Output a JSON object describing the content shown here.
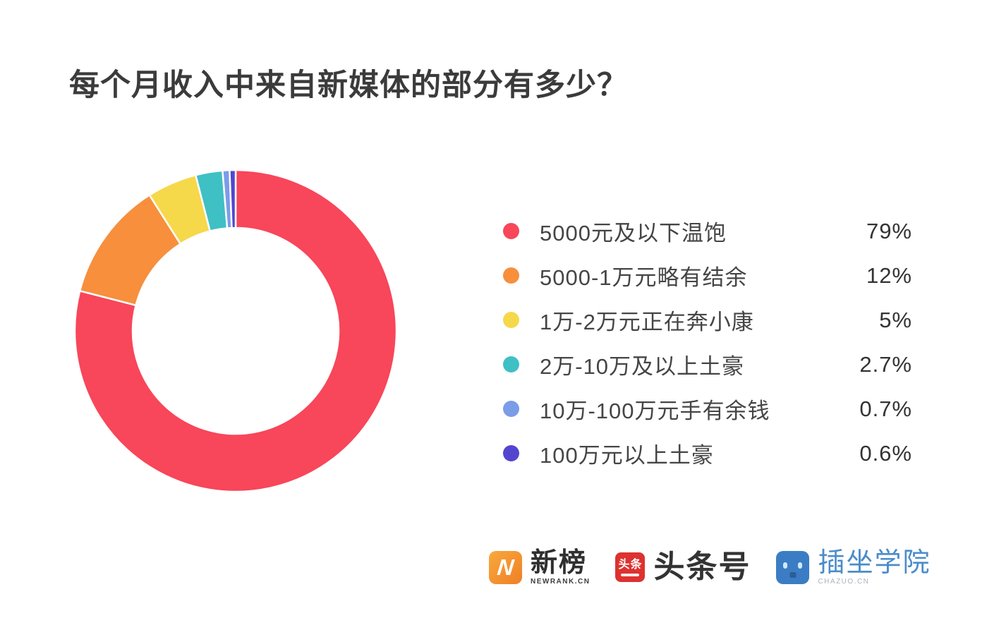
{
  "title": "每个月收入中来自新媒体的部分有多少？",
  "chart_data": {
    "type": "pie",
    "subtype": "donut",
    "title": "每个月收入中来自新媒体的部分有多少？",
    "start_angle": "top",
    "direction": "clockwise",
    "legend_position": "right",
    "labels": [
      "5000元及以下温饱",
      "5000-1万元略有结余",
      "1万-2万元正在奔小康",
      "2万-10万及以上土豪",
      "10万-100万元手有余钱",
      "100万元以上土豪"
    ],
    "values": [
      79,
      12,
      5,
      2.7,
      0.7,
      0.6
    ],
    "display_percents": [
      "79%",
      "12%",
      "5%",
      "2.7%",
      "0.7%",
      "0.6%"
    ],
    "colors": [
      "#f8465a",
      "#f78f3d",
      "#f6d84b",
      "#3ec0c5",
      "#7b9ce8",
      "#5345d0"
    ]
  },
  "legend": {
    "items": [
      {
        "label": "5000元及以下温饱",
        "percent": "79%",
        "color": "#f8465a"
      },
      {
        "label": "5000-1万元略有结余",
        "percent": "12%",
        "color": "#f78f3d"
      },
      {
        "label": "1万-2万元正在奔小康",
        "percent": "5%",
        "color": "#f6d84b"
      },
      {
        "label": "2万-10万及以上土豪",
        "percent": "2.7%",
        "color": "#3ec0c5"
      },
      {
        "label": "10万-100万元手有余钱",
        "percent": "0.7%",
        "color": "#7b9ce8"
      },
      {
        "label": "100万元以上土豪",
        "percent": "0.6%",
        "color": "#5345d0"
      }
    ]
  },
  "footer": {
    "newrank": {
      "name": "新榜",
      "subtext": "NEWRANK.CN",
      "icon_letter": "N",
      "icon_color": "#f08a2e"
    },
    "toutiao": {
      "name": "头条号",
      "icon_text": "头条",
      "icon_color": "#dd3230"
    },
    "chazuo": {
      "name": "插坐学院",
      "subtext": "CHAZUO.CN",
      "icon_color": "#3b7dc4"
    }
  }
}
